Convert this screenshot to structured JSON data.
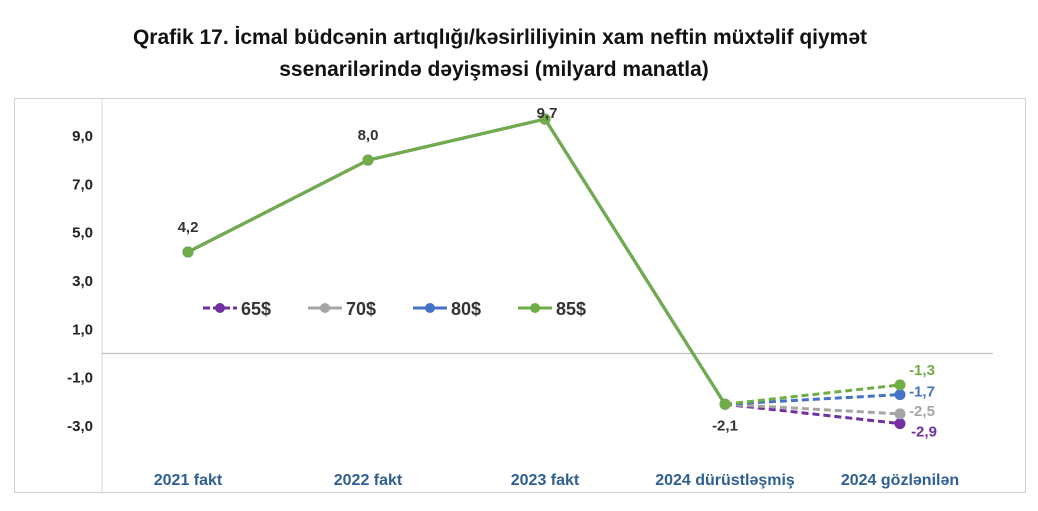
{
  "title_lines": [
    "Qrafik 17. İcmal büdcənin artıqlığı/kəsirliliyinin xam neftin müxtəlif qiymət",
    "ssenarilərində dəyişməsi (milyard manatla)"
  ],
  "chart_data": {
    "type": "line",
    "title": "Qrafik 17. İcmal büdcənin artıqlığı/kəsirliliyinin xam neftin müxtəlif qiymət ssenarilərində dəyişməsi (milyard manatla)",
    "categories": [
      "2021 fakt",
      "2022 fakt",
      "2023 fakt",
      "2024 dürüstləşmiş",
      "2024 gözlənilən"
    ],
    "y_ticks": [
      "9,0",
      "7,0",
      "5,0",
      "3,0",
      "1,0",
      "-1,0",
      "-3,0"
    ],
    "y_tick_values": [
      9,
      7,
      5,
      3,
      1,
      -1,
      -3
    ],
    "ylim": [
      -3.9,
      10
    ],
    "grid": false,
    "legend_position": "center-left",
    "series": [
      {
        "name": "65$",
        "color": "#7030a0",
        "values": [
          4.2,
          8.0,
          9.7,
          -2.1,
          -2.9
        ],
        "end_label": "-2,9"
      },
      {
        "name": "70$",
        "color": "#a5a5a5",
        "values": [
          4.2,
          8.0,
          9.7,
          -2.1,
          -2.5
        ],
        "end_label": "-2,5"
      },
      {
        "name": "80$",
        "color": "#4472c4",
        "values": [
          4.2,
          8.0,
          9.7,
          -2.1,
          -1.7
        ],
        "end_label": "-1,7"
      },
      {
        "name": "85$",
        "color": "#70ad47",
        "values": [
          4.2,
          8.0,
          9.7,
          -2.1,
          -1.3
        ],
        "end_label": "-1,3"
      }
    ],
    "shared_labels": [
      "4,2",
      "8,0",
      "9,7",
      "-2,1"
    ],
    "dashed_segment_from_index": 3
  }
}
